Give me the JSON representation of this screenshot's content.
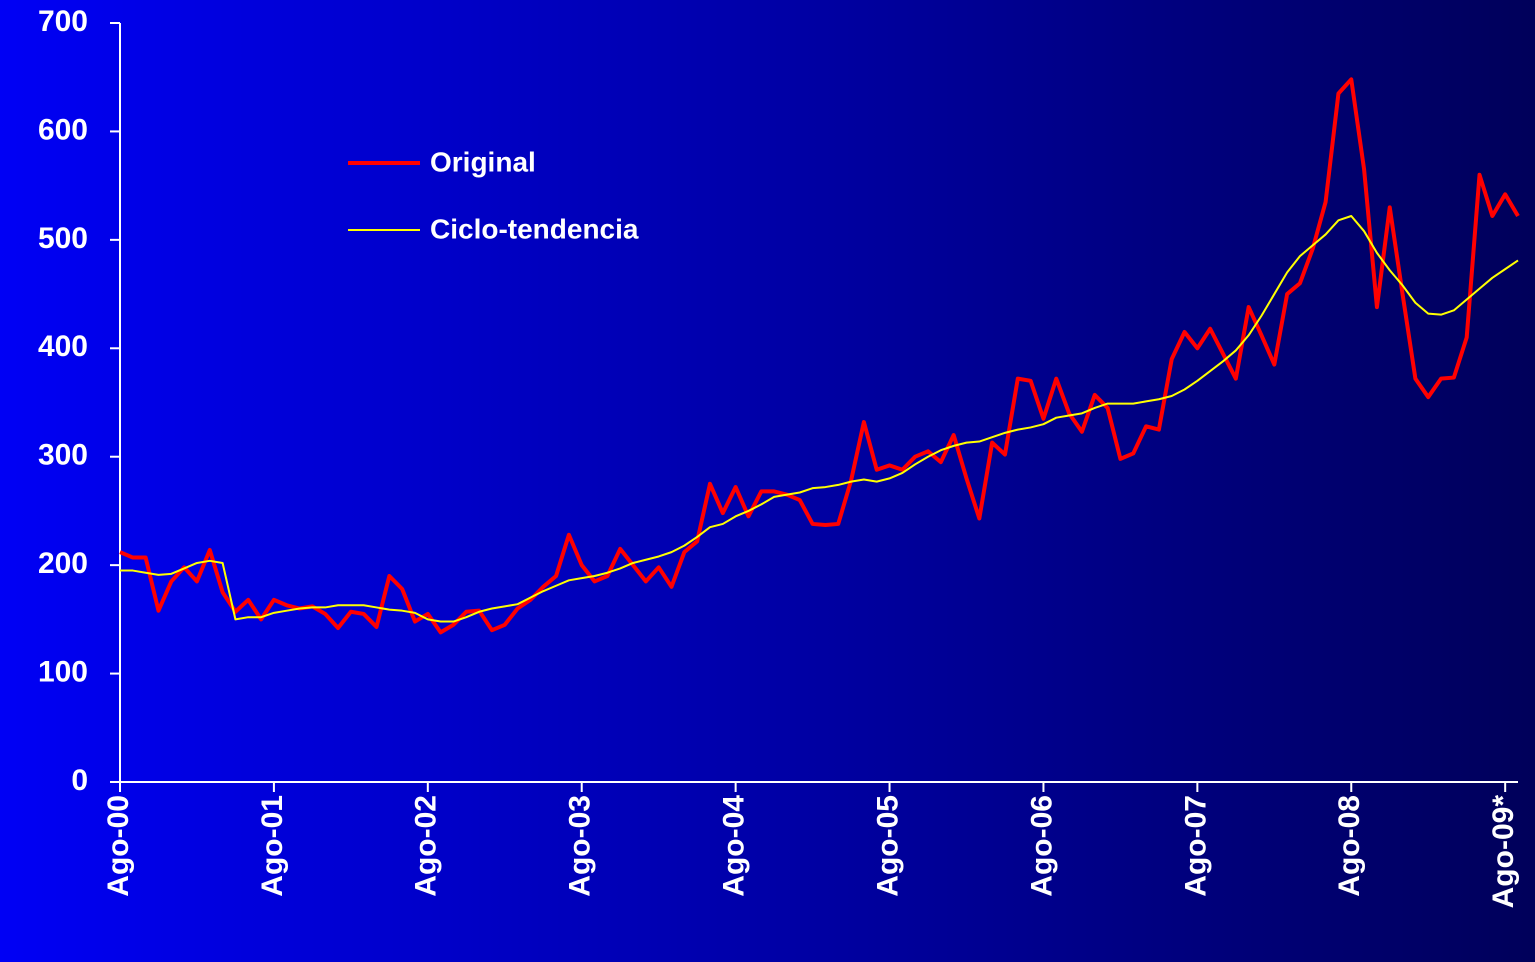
{
  "chart_data": {
    "type": "line",
    "categories": [
      "Ago-00",
      null,
      null,
      null,
      null,
      null,
      null,
      null,
      null,
      null,
      null,
      null,
      "Ago-01",
      null,
      null,
      null,
      null,
      null,
      null,
      null,
      null,
      null,
      null,
      null,
      "Ago-02",
      null,
      null,
      null,
      null,
      null,
      null,
      null,
      null,
      null,
      null,
      null,
      "Ago-03",
      null,
      null,
      null,
      null,
      null,
      null,
      null,
      null,
      null,
      null,
      null,
      "Ago-04",
      null,
      null,
      null,
      null,
      null,
      null,
      null,
      null,
      null,
      null,
      null,
      "Ago-05",
      null,
      null,
      null,
      null,
      null,
      null,
      null,
      null,
      null,
      null,
      null,
      "Ago-06",
      null,
      null,
      null,
      null,
      null,
      null,
      null,
      null,
      null,
      null,
      null,
      "Ago-07",
      null,
      null,
      null,
      null,
      null,
      null,
      null,
      null,
      null,
      null,
      null,
      "Ago-08",
      null,
      null,
      null,
      null,
      null,
      null,
      null,
      null,
      null,
      null,
      null,
      "Ago-09*",
      null
    ],
    "series": [
      {
        "name": "Original",
        "color": "#ff0000",
        "values": [
          212,
          207,
          207,
          158,
          185,
          198,
          185,
          214,
          175,
          157,
          168,
          150,
          168,
          163,
          160,
          162,
          155,
          142,
          157,
          155,
          143,
          190,
          178,
          148,
          155,
          138,
          145,
          157,
          158,
          140,
          145,
          160,
          168,
          180,
          190,
          228,
          200,
          185,
          190,
          215,
          200,
          185,
          198,
          180,
          212,
          222,
          275,
          248,
          272,
          245,
          268,
          268,
          265,
          260,
          238,
          237,
          238,
          278,
          332,
          288,
          292,
          288,
          300,
          305,
          295,
          320,
          280,
          243,
          313,
          302,
          372,
          370,
          335,
          372,
          340,
          323,
          357,
          345,
          298,
          303,
          328,
          325,
          390,
          415,
          400,
          418,
          395,
          372,
          438,
          412,
          385,
          450,
          460,
          492,
          535,
          635,
          648,
          565,
          438,
          530,
          450,
          372,
          355,
          372,
          373,
          410,
          560,
          522,
          542,
          522
        ]
      },
      {
        "name": "Ciclo-tendencia",
        "color": "#ffff00",
        "values": [
          195,
          195,
          193,
          191,
          192,
          197,
          202,
          204,
          202,
          150,
          152,
          152,
          156,
          158,
          160,
          161,
          161,
          163,
          163,
          163,
          161,
          159,
          158,
          156,
          150,
          148,
          148,
          152,
          157,
          160,
          162,
          164,
          170,
          176,
          181,
          186,
          188,
          190,
          193,
          197,
          202,
          205,
          208,
          212,
          218,
          226,
          235,
          238,
          245,
          250,
          256,
          263,
          265,
          267,
          271,
          272,
          274,
          277,
          279,
          277,
          280,
          285,
          293,
          300,
          306,
          310,
          313,
          314,
          318,
          322,
          325,
          327,
          330,
          336,
          338,
          340,
          345,
          349,
          349,
          349,
          351,
          353,
          356,
          362,
          370,
          379,
          388,
          398,
          412,
          430,
          450,
          470,
          485,
          495,
          505,
          518,
          522,
          508,
          488,
          472,
          458,
          442,
          432,
          431,
          435,
          445,
          455,
          465,
          473,
          481
        ]
      }
    ],
    "ylim": [
      0,
      700
    ],
    "yticks": [
      0,
      100,
      200,
      300,
      400,
      500,
      600,
      700
    ]
  }
}
